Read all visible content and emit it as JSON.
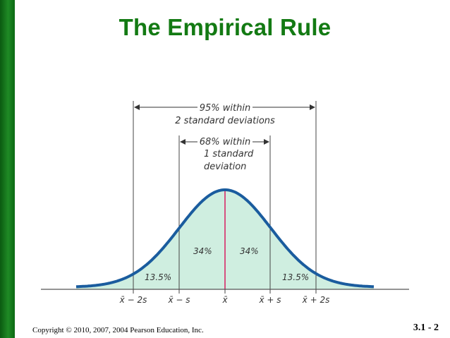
{
  "slide": {
    "title": "The Empirical Rule",
    "copyright": "Copyright © 2010, 2007, 2004 Pearson Education, Inc.",
    "page_number": "3.1 - 2"
  },
  "diagram": {
    "span_95": {
      "line1": "95% within",
      "line2": "2 standard deviations"
    },
    "span_68": {
      "line1": "68% within",
      "line2": "1 standard",
      "line3": "deviation"
    },
    "regions": {
      "inner_left": "34%",
      "inner_right": "34%",
      "outer_left": "13.5%",
      "outer_right": "13.5%"
    },
    "axis_ticks": {
      "minus_2s": "x̄ − 2s",
      "minus_s": "x̄ − s",
      "mean": "x̄",
      "plus_s": "x̄ + s",
      "plus_2s": "x̄ + 2s"
    },
    "colors": {
      "curve": "#1a5c9e",
      "fill": "#cfeee0",
      "mean_line": "#d81b60",
      "title": "#137a13"
    }
  }
}
